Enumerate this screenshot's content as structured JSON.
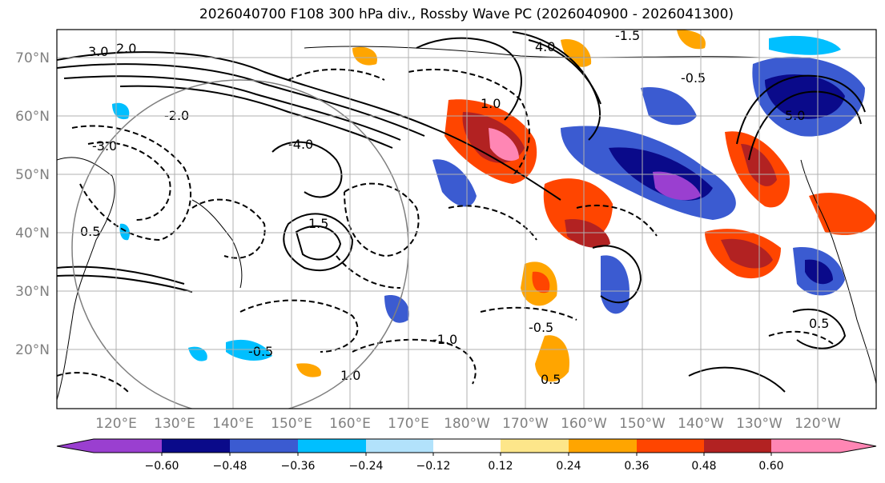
{
  "title": "2026040700 F108 300 hPa div., Rossby Wave PC (2026040900 - 2026041300)",
  "map": {
    "lat_labels": [
      "70°N",
      "60°N",
      "50°N",
      "40°N",
      "30°N",
      "20°N"
    ],
    "lon_labels": [
      "120°E",
      "130°E",
      "140°E",
      "150°E",
      "160°E",
      "170°E",
      "180°W",
      "170°W",
      "160°W",
      "150°W",
      "140°W",
      "130°W",
      "120°W"
    ],
    "contour_labels": [
      "3.0",
      "2.0",
      "4.0",
      "-2.0",
      "5.0",
      "-1.5",
      "1.0",
      "-0.5",
      "0.5",
      "-3.0",
      "-4.0",
      "-1.0",
      "1.5",
      "-0.5",
      "0.5",
      "-0.5",
      "0.5",
      "1.0"
    ]
  },
  "colorbar": {
    "colors": [
      "#9a3fd0",
      "#0a0a8a",
      "#3b5bd1",
      "#00bfff",
      "#b2e2fb",
      "#ffffff",
      "#fde68a",
      "#ffa500",
      "#ff4500",
      "#b22222",
      "#ff86b4"
    ],
    "tick_labels": [
      "−0.60",
      "−0.48",
      "−0.36",
      "−0.24",
      "−0.12",
      "0.12",
      "0.24",
      "0.36",
      "0.48",
      "0.60"
    ]
  }
}
